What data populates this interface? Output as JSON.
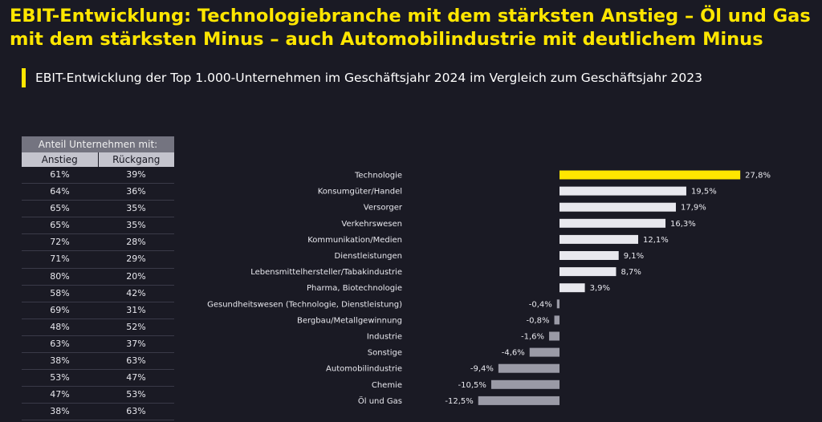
{
  "title": "EBIT-Entwicklung: Technologiebranche mit dem stärksten Anstieg – Öl und Gas mit dem stärksten Minus – auch Automobilindustrie mit deutlichem Minus",
  "subtitle": "EBIT-Entwicklung der Top 1.000-Unternehmen im Geschäftsjahr 2024 im Vergleich zum Geschäftsjahr 2023",
  "table": {
    "header": "Anteil Unternehmen mit:",
    "col_up": "Anstieg",
    "col_down": "Rückgang",
    "rows": [
      {
        "up": "61%",
        "down": "39%"
      },
      {
        "up": "64%",
        "down": "36%"
      },
      {
        "up": "65%",
        "down": "35%"
      },
      {
        "up": "65%",
        "down": "35%"
      },
      {
        "up": "72%",
        "down": "28%"
      },
      {
        "up": "71%",
        "down": "29%"
      },
      {
        "up": "80%",
        "down": "20%"
      },
      {
        "up": "58%",
        "down": "42%"
      },
      {
        "up": "69%",
        "down": "31%"
      },
      {
        "up": "48%",
        "down": "52%"
      },
      {
        "up": "63%",
        "down": "37%"
      },
      {
        "up": "38%",
        "down": "63%"
      },
      {
        "up": "53%",
        "down": "47%"
      },
      {
        "up": "47%",
        "down": "53%"
      },
      {
        "up": "38%",
        "down": "63%"
      }
    ]
  },
  "chart_data": {
    "type": "bar",
    "orientation": "horizontal",
    "categories": [
      "Technologie",
      "Konsumgüter/Handel",
      "Versorger",
      "Verkehrswesen",
      "Kommunikation/Medien",
      "Dienstleistungen",
      "Lebensmittelhersteller/Tabakindustrie",
      "Pharma, Biotechnologie",
      "Gesundheitswesen (Technologie, Dienstleistung)",
      "Bergbau/Metallgewinnung",
      "Industrie",
      "Sonstige",
      "Automobilindustrie",
      "Chemie",
      "Öl und Gas"
    ],
    "values": [
      27.8,
      19.5,
      17.9,
      16.3,
      12.1,
      9.1,
      8.7,
      3.9,
      -0.4,
      -0.8,
      -1.6,
      -4.6,
      -9.4,
      -10.5,
      -12.5
    ],
    "labels": [
      "27,8%",
      "19,5%",
      "17,9%",
      "16,3%",
      "12,1%",
      "9,1%",
      "8,7%",
      "3,9%",
      "-0,4%",
      "-0,8%",
      "-1,6%",
      "-4,6%",
      "-9,4%",
      "-10,5%",
      "-12,5%"
    ],
    "colors": {
      "highlight": "#ffe600",
      "positive": "#e8e8ee",
      "negative": "#9a9aa6"
    },
    "highlight_index": 0
  }
}
